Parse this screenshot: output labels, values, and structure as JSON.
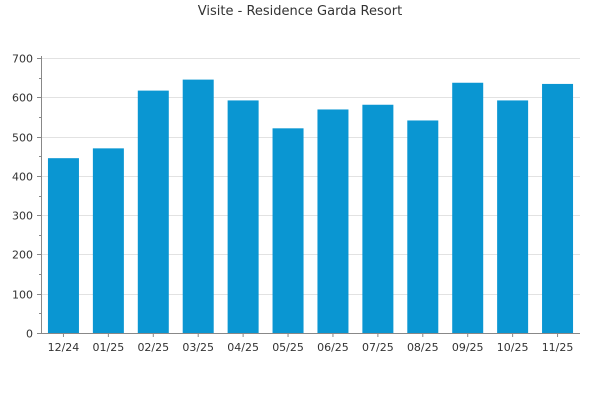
{
  "chart_data": {
    "type": "bar",
    "title": "Visite - Residence Garda Resort",
    "xlabel": "",
    "ylabel": "",
    "categories": [
      "12/24",
      "01/25",
      "02/25",
      "03/25",
      "04/25",
      "05/25",
      "06/25",
      "07/25",
      "08/25",
      "09/25",
      "10/25",
      "11/25"
    ],
    "series": [
      {
        "values": [
          445,
          470,
          617,
          645,
          592,
          521,
          569,
          581,
          541,
          637,
          592,
          634
        ]
      }
    ],
    "ylim": [
      0,
      700
    ],
    "yticks": [
      0,
      100,
      200,
      300,
      400,
      500,
      600,
      700
    ],
    "grid": true,
    "legend": "none",
    "colors": {
      "bar": "#0a96d2",
      "grid": "#e2e2e2",
      "axis": "#888888",
      "text": "#333333"
    }
  }
}
